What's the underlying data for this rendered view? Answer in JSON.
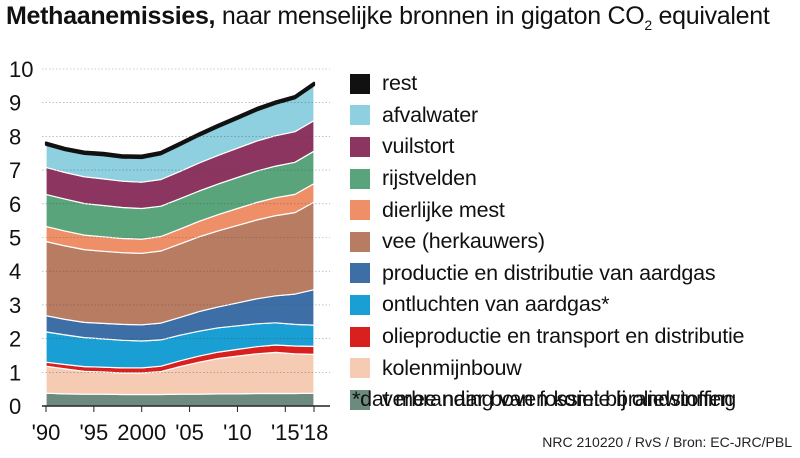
{
  "title": {
    "bold": "Methaanemissies,",
    "rest": "naar menselijke bronnen in gigaton CO",
    "sub": "2",
    "tail": " equivalent"
  },
  "legend_items": [
    {
      "label": "rest",
      "color": "#111111"
    },
    {
      "label": "afvalwater",
      "color": "#8ecfe0"
    },
    {
      "label": "vuilstort",
      "color": "#8c3560"
    },
    {
      "label": "rijstvelden",
      "color": "#5aa47c"
    },
    {
      "label": "dierlijke mest",
      "color": "#ef8f68"
    },
    {
      "label": "vee (herkauwers)",
      "color": "#b87c63"
    },
    {
      "label": "productie en distributie van aardgas",
      "color": "#3d6fa6"
    },
    {
      "label": "ontluchten van aardgas*",
      "color": "#1a9fd4"
    },
    {
      "label": "olieproductie en transport en distributie",
      "color": "#d8201f"
    },
    {
      "label": "kolenmijnbouw",
      "color": "#f6cbb4"
    },
    {
      "label": "verbranding van fossiele brandstoffen",
      "color": "#6c8a7e"
    }
  ],
  "footnote": "*dat mee naar boven komt bij oliewinning",
  "source": "NRC 210220 / RvS / Bron: EC-JRC/PBL",
  "chart_data": {
    "type": "area",
    "stacked": true,
    "title": "Methaanemissies, naar menselijke bronnen in gigaton CO2 equivalent",
    "xlim": [
      1990,
      2018
    ],
    "ylim": [
      0,
      10
    ],
    "yticks": [
      "0",
      "1",
      "2",
      "3",
      "4",
      "5",
      "6",
      "7",
      "8",
      "9",
      "10"
    ],
    "xticks": [
      {
        "value": 1990,
        "label": "'90"
      },
      {
        "value": 1995,
        "label": "'95"
      },
      {
        "value": 2000,
        "label": "2000"
      },
      {
        "value": 2005,
        "label": "'05"
      },
      {
        "value": 2010,
        "label": "'10"
      },
      {
        "value": 2015,
        "label": "'15"
      },
      {
        "value": 2018,
        "label": "'18"
      }
    ],
    "x": [
      1990,
      1992,
      1994,
      1996,
      1998,
      2000,
      2002,
      2004,
      2006,
      2008,
      2010,
      2012,
      2014,
      2016,
      2018
    ],
    "series": [
      {
        "name": "verbranding van fossiele brandstoffen",
        "color": "#6c8a7e",
        "values": [
          0.38,
          0.36,
          0.35,
          0.35,
          0.34,
          0.34,
          0.34,
          0.35,
          0.35,
          0.36,
          0.36,
          0.37,
          0.37,
          0.37,
          0.38
        ]
      },
      {
        "name": "kolenmijnbouw",
        "color": "#f6cbb4",
        "values": [
          0.8,
          0.74,
          0.68,
          0.66,
          0.64,
          0.64,
          0.68,
          0.82,
          0.95,
          1.05,
          1.12,
          1.18,
          1.22,
          1.18,
          1.15
        ]
      },
      {
        "name": "olieproductie en transport en distributie",
        "color": "#d8201f",
        "values": [
          0.12,
          0.13,
          0.14,
          0.14,
          0.15,
          0.15,
          0.16,
          0.17,
          0.18,
          0.19,
          0.2,
          0.21,
          0.22,
          0.23,
          0.24
        ]
      },
      {
        "name": "ontluchten van aardgas*",
        "color": "#1a9fd4",
        "values": [
          0.9,
          0.88,
          0.86,
          0.84,
          0.82,
          0.8,
          0.78,
          0.76,
          0.74,
          0.72,
          0.7,
          0.68,
          0.66,
          0.64,
          0.63
        ]
      },
      {
        "name": "productie en distributie van aardgas",
        "color": "#3d6fa6",
        "values": [
          0.48,
          0.46,
          0.45,
          0.46,
          0.47,
          0.48,
          0.5,
          0.53,
          0.58,
          0.62,
          0.68,
          0.74,
          0.8,
          0.9,
          1.05
        ]
      },
      {
        "name": "vee (herkauwers)",
        "color": "#b87c63",
        "values": [
          2.2,
          2.18,
          2.16,
          2.14,
          2.13,
          2.12,
          2.14,
          2.18,
          2.22,
          2.26,
          2.3,
          2.34,
          2.38,
          2.42,
          2.6
        ]
      },
      {
        "name": "dierlijke mest",
        "color": "#ef8f68",
        "values": [
          0.45,
          0.44,
          0.43,
          0.43,
          0.42,
          0.42,
          0.43,
          0.44,
          0.46,
          0.48,
          0.5,
          0.52,
          0.53,
          0.54,
          0.55
        ]
      },
      {
        "name": "rijstvelden",
        "color": "#5aa47c",
        "values": [
          0.95,
          0.95,
          0.94,
          0.93,
          0.92,
          0.91,
          0.9,
          0.9,
          0.9,
          0.91,
          0.92,
          0.93,
          0.94,
          0.95,
          0.96
        ]
      },
      {
        "name": "vuilstort",
        "color": "#8c3560",
        "values": [
          0.8,
          0.79,
          0.79,
          0.79,
          0.78,
          0.78,
          0.79,
          0.81,
          0.83,
          0.85,
          0.87,
          0.89,
          0.9,
          0.91,
          0.91
        ]
      },
      {
        "name": "afvalwater",
        "color": "#8ecfe0",
        "values": [
          0.67,
          0.66,
          0.68,
          0.7,
          0.7,
          0.72,
          0.75,
          0.78,
          0.81,
          0.84,
          0.87,
          0.91,
          0.95,
          0.99,
          1.05
        ]
      },
      {
        "name": "rest",
        "color": "#111111",
        "values": [
          0.07,
          0.07,
          0.07,
          0.07,
          0.07,
          0.07,
          0.07,
          0.07,
          0.07,
          0.07,
          0.07,
          0.07,
          0.07,
          0.07,
          0.07
        ]
      }
    ]
  }
}
